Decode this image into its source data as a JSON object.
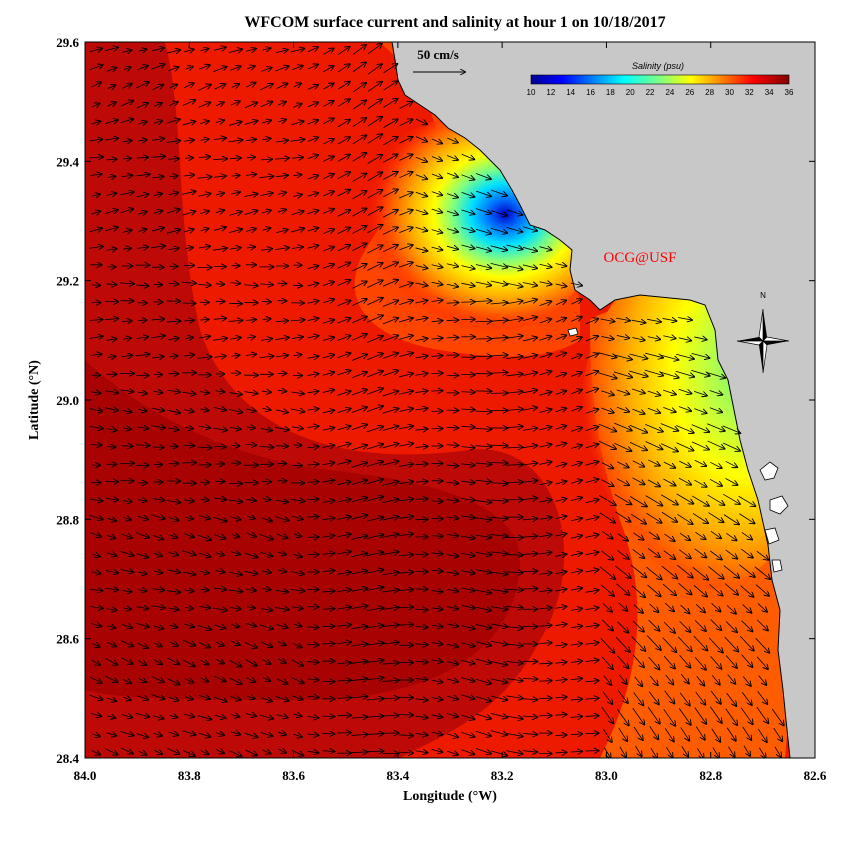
{
  "title": "WFCOM surface current and salinity at hour 1 on 10/18/2017",
  "x_axis": {
    "label": "Longitude (°W)",
    "ticks": [
      "84.0",
      "83.8",
      "83.6",
      "83.4",
      "83.2",
      "83.0",
      "82.8",
      "82.6"
    ],
    "range": [
      84.0,
      82.6
    ],
    "direction": "west-decreasing"
  },
  "y_axis": {
    "label": "Latitude (°N)",
    "ticks": [
      "28.4",
      "28.6",
      "28.8",
      "29.0",
      "29.2",
      "29.4",
      "29.6"
    ],
    "range": [
      28.4,
      29.6
    ]
  },
  "colorbar": {
    "title": "Salinity (psu)",
    "ticks": [
      "10",
      "12",
      "14",
      "16",
      "18",
      "20",
      "22",
      "24",
      "26",
      "28",
      "30",
      "32",
      "34",
      "36"
    ],
    "range": [
      10,
      36
    ],
    "colormap": "jet"
  },
  "scale_arrow": {
    "label": "50 cm/s",
    "value_cm_s": 50
  },
  "credit": "OCG@USF",
  "compass": {
    "north_label": "N"
  },
  "colors": {
    "land": "#c8c8c8",
    "high_salinity": "#b40000",
    "vector": "#000000",
    "credit": "#ff0000"
  },
  "chart_data": {
    "type": "heatmap",
    "title": "WFCOM surface current and salinity at hour 1 on 10/18/2017",
    "xlabel": "Longitude (°W)",
    "ylabel": "Latitude (°N)",
    "xlim": [
      84.0,
      82.6
    ],
    "ylim": [
      28.4,
      29.6
    ],
    "variable": "salinity",
    "units": "psu",
    "value_range": [
      10,
      36
    ],
    "overlay": "surface current vectors",
    "salinity_samples": [
      {
        "lon": 83.9,
        "lat": 28.6,
        "salinity": 35.5
      },
      {
        "lon": 83.5,
        "lat": 28.7,
        "salinity": 35.5
      },
      {
        "lon": 83.8,
        "lat": 29.3,
        "salinity": 34.5
      },
      {
        "lon": 83.3,
        "lat": 29.0,
        "salinity": 33.5
      },
      {
        "lon": 83.2,
        "lat": 29.3,
        "salinity": 11
      },
      {
        "lon": 83.27,
        "lat": 29.35,
        "salinity": 19
      },
      {
        "lon": 83.33,
        "lat": 29.27,
        "salinity": 26
      },
      {
        "lon": 82.8,
        "lat": 29.0,
        "salinity": 22
      },
      {
        "lon": 82.75,
        "lat": 28.9,
        "salinity": 27
      },
      {
        "lon": 82.72,
        "lat": 28.65,
        "salinity": 30
      },
      {
        "lon": 82.95,
        "lat": 28.9,
        "salinity": 32
      }
    ]
  }
}
